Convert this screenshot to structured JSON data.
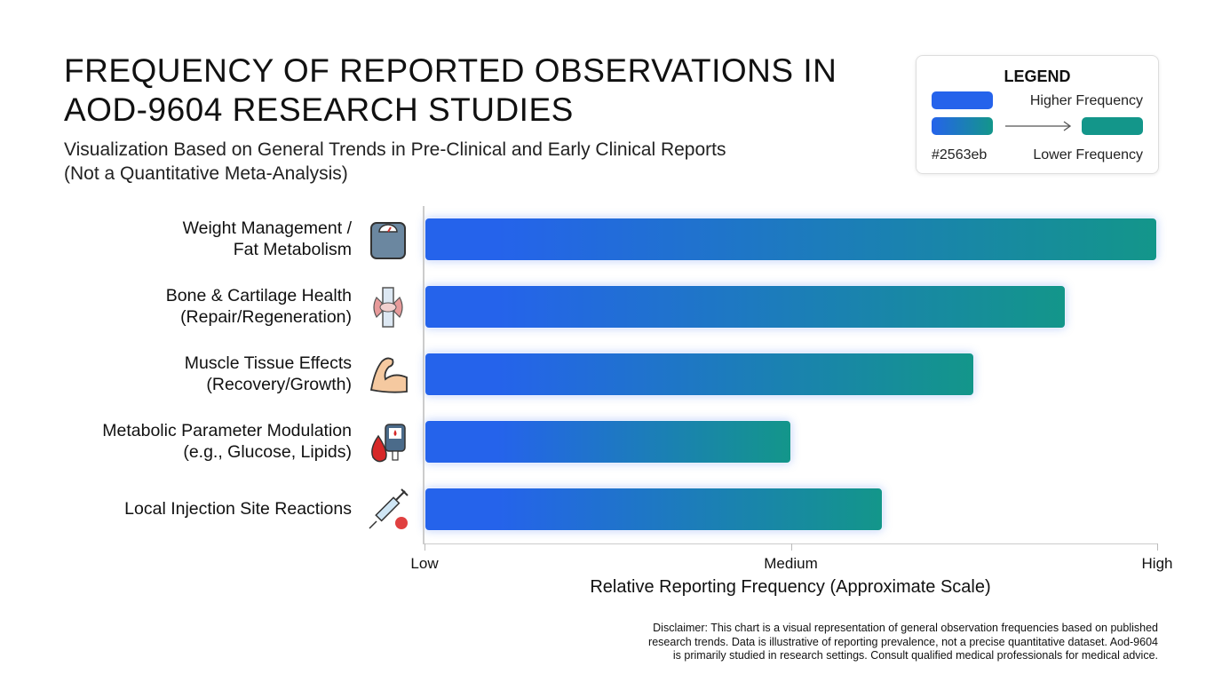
{
  "chart_data": {
    "type": "bar",
    "orientation": "horizontal",
    "title": "FREQUENCY OF REPORTED OBSERVATIONS IN AOD-9604 RESEARCH STUDIES",
    "subtitle_line1": "Visualization Based on General Trends in Pre-Clinical and Early Clinical Reports",
    "subtitle_line2": "(Not a Quantitative Meta-Analysis)",
    "categories": [
      {
        "line1": "Weight Management /",
        "line2": "Fat Metabolism",
        "icon": "scale-icon"
      },
      {
        "line1": "Bone & Cartilage Health",
        "line2": "(Repair/Regeneration)",
        "icon": "joint-icon"
      },
      {
        "line1": "Muscle Tissue Effects",
        "line2": "(Recovery/Growth)",
        "icon": "flexed-arm-icon"
      },
      {
        "line1": "Metabolic Parameter Modulation",
        "line2": "(e.g., Glucose, Lipids)",
        "icon": "glucose-meter-icon"
      },
      {
        "line1": "Local Injection Site Reactions",
        "line2": "",
        "icon": "syringe-icon"
      }
    ],
    "values": [
      100,
      87.5,
      75,
      50,
      62.5
    ],
    "xlim": [
      0,
      100
    ],
    "xticks": [
      {
        "value": 0,
        "label": "Low"
      },
      {
        "value": 50,
        "label": "Medium"
      },
      {
        "value": 100,
        "label": "High"
      }
    ],
    "xlabel": "Relative Reporting Frequency (Approximate Scale)",
    "colors": {
      "start": "#2563eb",
      "end": "#13968a"
    },
    "legend": {
      "title": "LEGEND",
      "higher": "Higher Frequency",
      "lower": "Lower Frequency",
      "hex": "#2563eb",
      "placement": "top-right"
    }
  },
  "disclaimer": [
    "Disclaimer: This chart is a visual representation of general observation frequencies based on published",
    "research trends. Data is illustrative of reporting prevalence, not a precise quantitative dataset. Aod-9604",
    "is primarily studied in research settings. Consult qualified medical professionals for medical advice."
  ]
}
